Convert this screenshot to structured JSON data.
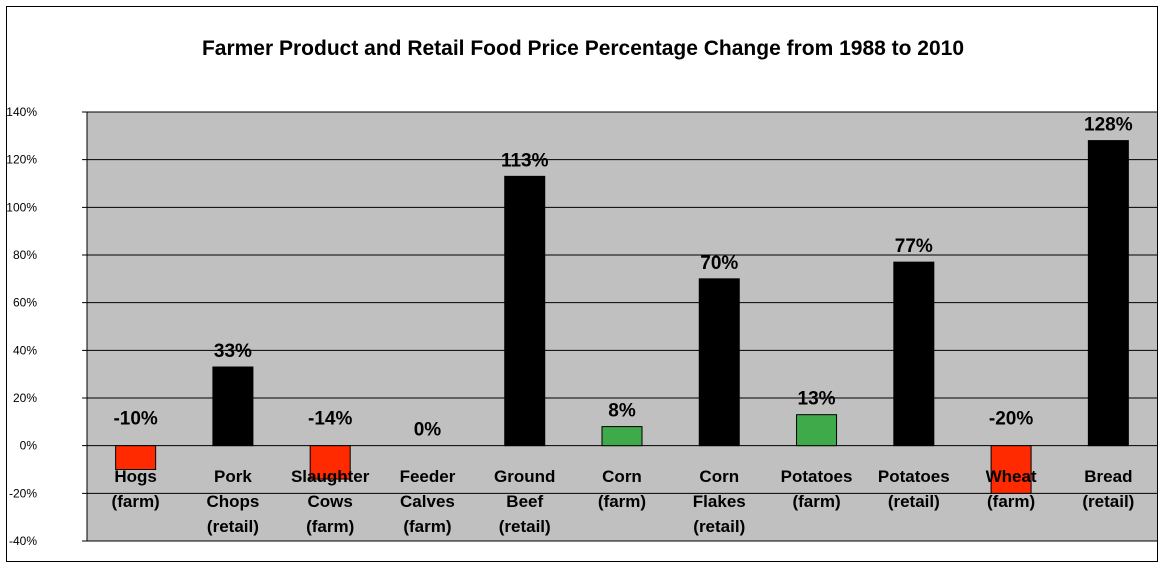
{
  "chart_data": {
    "type": "bar",
    "title": "Farmer Product and Retail Food Price Percentage Change from 1988 to 2010",
    "xlabel": "",
    "ylabel": "",
    "ylim": [
      -40,
      140
    ],
    "yticks": [
      "140%",
      "120%",
      "100%",
      "80%",
      "60%",
      "40%",
      "20%",
      "0%",
      "-20%",
      "-40%"
    ],
    "grid": true,
    "legend": "none",
    "plot_background": "#c0c0c0",
    "categories": [
      [
        "Hogs",
        "(farm)"
      ],
      [
        "Pork",
        "Chops",
        "(retail)"
      ],
      [
        "Slaughter",
        "Cows",
        "(farm)"
      ],
      [
        "Feeder",
        "Calves",
        "(farm)"
      ],
      [
        "Ground",
        "Beef",
        "(retail)"
      ],
      [
        "Corn",
        "(farm)"
      ],
      [
        "Corn",
        "Flakes",
        "(retail)"
      ],
      [
        "Potatoes",
        "(farm)"
      ],
      [
        "Potatoes",
        "(retail)"
      ],
      [
        "Wheat",
        "(farm)"
      ],
      [
        "Bread",
        "(retail)"
      ]
    ],
    "values": [
      -10,
      33,
      -14,
      0,
      113,
      8,
      70,
      13,
      77,
      -20,
      128
    ],
    "data_labels": [
      "-10%",
      "33%",
      "-14%",
      "0%",
      "113%",
      "8%",
      "70%",
      "13%",
      "77%",
      "-20%",
      "128%"
    ],
    "colors": [
      "#ff2a00",
      "#000000",
      "#ff2a00",
      "#000000",
      "#000000",
      "#3faa4a",
      "#000000",
      "#3faa4a",
      "#000000",
      "#ff2a00",
      "#000000"
    ]
  }
}
